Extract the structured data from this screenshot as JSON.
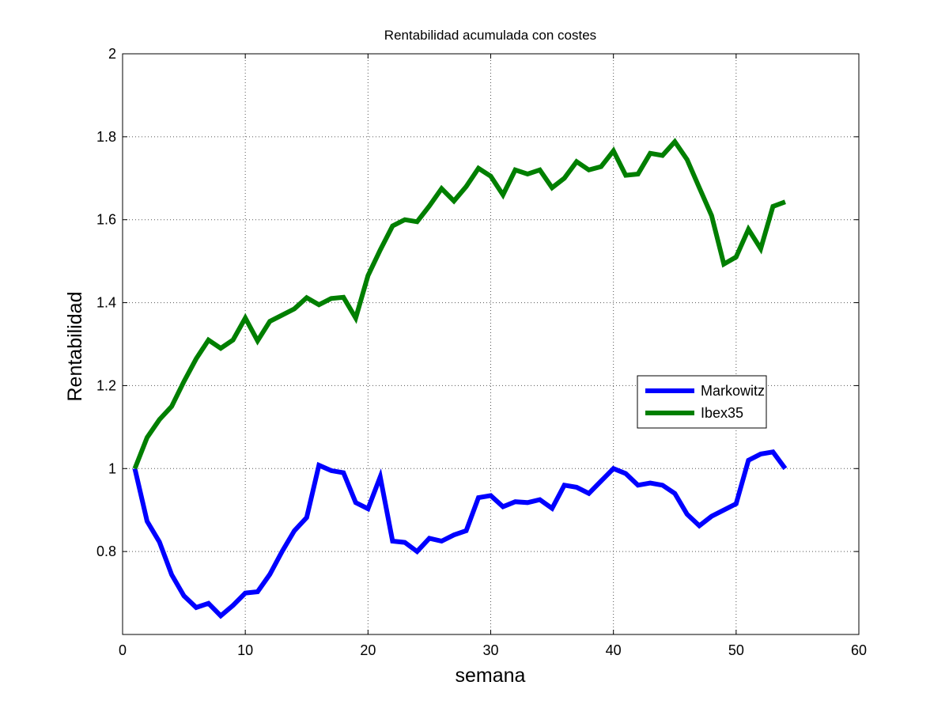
{
  "chart_data": {
    "type": "line",
    "title": "Rentabilidad acumulada con costes",
    "xlabel": "semana",
    "ylabel": "Rentabilidad",
    "xlim": [
      0,
      60
    ],
    "ylim": [
      0.6,
      2
    ],
    "xticks": [
      0,
      10,
      20,
      30,
      40,
      50,
      60
    ],
    "yticks": [
      0.8,
      1,
      1.2,
      1.4,
      1.6,
      1.8,
      2
    ],
    "ytick_labels": [
      "0.8",
      "1",
      "1.2",
      "1.4",
      "1.6",
      "1.8",
      "2"
    ],
    "grid": true,
    "legend_position": "right",
    "series": [
      {
        "name": "Markowitz",
        "color": "#0000ff",
        "x": [
          1,
          2,
          3,
          4,
          5,
          6,
          7,
          8,
          9,
          10,
          11,
          12,
          13,
          14,
          15,
          16,
          17,
          18,
          19,
          20,
          21,
          22,
          23,
          24,
          25,
          26,
          27,
          28,
          29,
          30,
          31,
          32,
          33,
          34,
          35,
          36,
          37,
          38,
          39,
          40,
          41,
          42,
          43,
          44,
          45,
          46,
          47,
          48,
          49,
          50,
          51,
          52,
          53,
          54
        ],
        "y": [
          1.0,
          0.873,
          0.823,
          0.744,
          0.693,
          0.665,
          0.675,
          0.645,
          0.67,
          0.7,
          0.703,
          0.745,
          0.8,
          0.85,
          0.882,
          1.008,
          0.995,
          0.99,
          0.918,
          0.903,
          0.98,
          0.825,
          0.822,
          0.8,
          0.832,
          0.825,
          0.84,
          0.85,
          0.93,
          0.935,
          0.908,
          0.92,
          0.918,
          0.925,
          0.904,
          0.96,
          0.955,
          0.94,
          0.97,
          1.0,
          0.988,
          0.96,
          0.965,
          0.96,
          0.94,
          0.89,
          0.862,
          0.885,
          0.9,
          0.915,
          1.02,
          1.035,
          1.04,
          1.0
        ]
      },
      {
        "name": "Ibex35",
        "color": "#007f00",
        "x": [
          1,
          2,
          3,
          4,
          5,
          6,
          7,
          8,
          9,
          10,
          11,
          12,
          13,
          14,
          15,
          16,
          17,
          18,
          19,
          20,
          21,
          22,
          23,
          24,
          25,
          26,
          27,
          28,
          29,
          30,
          31,
          32,
          33,
          34,
          35,
          36,
          37,
          38,
          39,
          40,
          41,
          42,
          43,
          44,
          45,
          46,
          47,
          48,
          49,
          50,
          51,
          52,
          53,
          54
        ],
        "y": [
          1.0,
          1.075,
          1.118,
          1.15,
          1.21,
          1.265,
          1.31,
          1.29,
          1.31,
          1.363,
          1.308,
          1.355,
          1.37,
          1.385,
          1.412,
          1.395,
          1.41,
          1.413,
          1.363,
          1.465,
          1.527,
          1.585,
          1.6,
          1.595,
          1.633,
          1.675,
          1.645,
          1.68,
          1.724,
          1.705,
          1.66,
          1.72,
          1.71,
          1.72,
          1.677,
          1.7,
          1.74,
          1.72,
          1.728,
          1.766,
          1.707,
          1.71,
          1.76,
          1.755,
          1.788,
          1.745,
          1.677,
          1.61,
          1.493,
          1.51,
          1.577,
          1.53,
          1.632,
          1.643
        ]
      }
    ]
  }
}
